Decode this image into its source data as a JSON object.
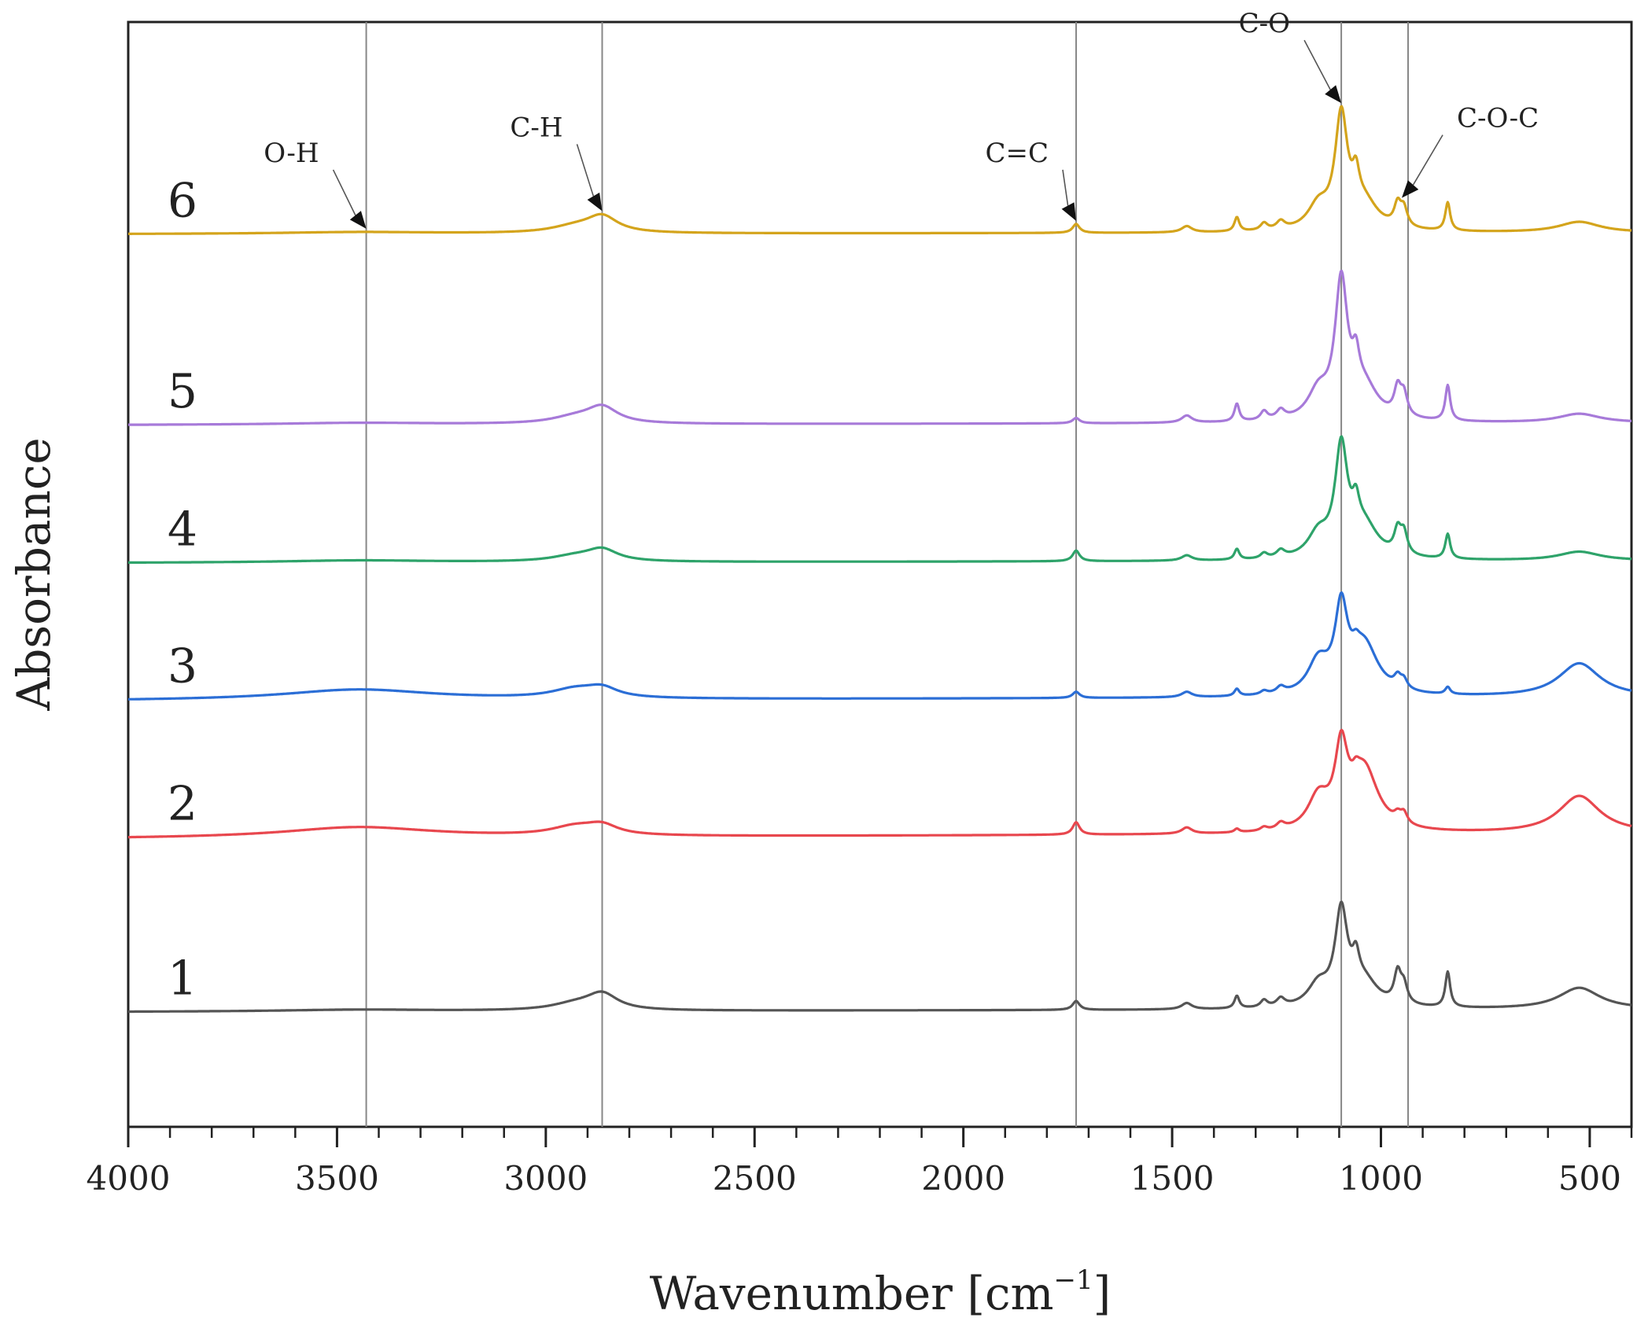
{
  "chart_data": {
    "type": "line",
    "xlabel": "Wavenumber [cm",
    "xlabel_sup": "−1",
    "xlabel_suffix": "]",
    "ylabel": "Absorbance",
    "xlim": [
      4000,
      400
    ],
    "x_reversed": true,
    "x_ticks": [
      4000,
      3500,
      3000,
      2500,
      2000,
      1500,
      1000,
      500
    ],
    "x_minor_step": 100,
    "y_ticks": false,
    "grid": false,
    "legend": "none",
    "reference_lines": [
      3430,
      2865,
      1730,
      1095,
      935
    ],
    "annotations": [
      {
        "text": "O-H",
        "x": 3430,
        "trace": 6
      },
      {
        "text": "C-H",
        "x": 2865,
        "trace": 6
      },
      {
        "text": "C=C",
        "x": 1730,
        "trace": 6
      },
      {
        "text": "C-O",
        "x": 1095,
        "trace": 6
      },
      {
        "text": "C-O-C",
        "x": 950,
        "trace": 6
      }
    ],
    "peak_shapes": [
      {
        "x": 3450,
        "width": 220
      },
      {
        "x": 2865,
        "width": 45
      },
      {
        "x": 2930,
        "width": 70
      },
      {
        "x": 1730,
        "width": 10
      },
      {
        "x": 1465,
        "width": 15
      },
      {
        "x": 1345,
        "width": 7
      },
      {
        "x": 1280,
        "width": 10
      },
      {
        "x": 1240,
        "width": 12
      },
      {
        "x": 1150,
        "width": 30
      },
      {
        "x": 1095,
        "width": 18
      },
      {
        "x": 1060,
        "width": 10
      },
      {
        "x": 1040,
        "width": 40
      },
      {
        "x": 960,
        "width": 10
      },
      {
        "x": 945,
        "width": 10
      },
      {
        "x": 840,
        "width": 7
      },
      {
        "x": 525,
        "width": 60
      }
    ],
    "series": [
      {
        "name": "1",
        "color": "#555555",
        "baseline": 0.0,
        "slope": 0.015,
        "amps": [
          0.01,
          0.09,
          0.035,
          0.05,
          0.035,
          0.07,
          0.04,
          0.045,
          0.12,
          0.52,
          0.15,
          0.14,
          0.17,
          0.1,
          0.2,
          0.12
        ]
      },
      {
        "name": "2",
        "color": "#e8474e",
        "baseline": 0.98,
        "slope": 0.03,
        "amps": [
          0.06,
          0.05,
          0.05,
          0.07,
          0.035,
          0.02,
          0.02,
          0.035,
          0.18,
          0.42,
          0.05,
          0.35,
          0.04,
          0.06,
          0.0,
          0.21
        ]
      },
      {
        "name": "3",
        "color": "#2b6ed6",
        "baseline": 1.76,
        "slope": 0.02,
        "amps": [
          0.06,
          0.05,
          0.05,
          0.035,
          0.03,
          0.04,
          0.02,
          0.035,
          0.18,
          0.45,
          0.05,
          0.28,
          0.06,
          0.05,
          0.04,
          0.19
        ]
      },
      {
        "name": "4",
        "color": "#2ea36a",
        "baseline": 2.54,
        "slope": 0.012,
        "amps": [
          0.012,
          0.065,
          0.03,
          0.06,
          0.03,
          0.06,
          0.03,
          0.04,
          0.13,
          0.6,
          0.15,
          0.18,
          0.13,
          0.12,
          0.14,
          0.05
        ]
      },
      {
        "name": "5",
        "color": "#a77ad9",
        "baseline": 3.32,
        "slope": 0.012,
        "amps": [
          0.01,
          0.09,
          0.035,
          0.03,
          0.04,
          0.1,
          0.05,
          0.05,
          0.15,
          0.75,
          0.18,
          0.18,
          0.15,
          0.12,
          0.2,
          0.05
        ]
      },
      {
        "name": "6",
        "color": "#d4a41c",
        "baseline": 4.4,
        "slope": 0.008,
        "amps": [
          0.01,
          0.09,
          0.035,
          0.05,
          0.035,
          0.08,
          0.04,
          0.045,
          0.13,
          0.62,
          0.17,
          0.15,
          0.12,
          0.1,
          0.16,
          0.06
        ]
      }
    ]
  }
}
